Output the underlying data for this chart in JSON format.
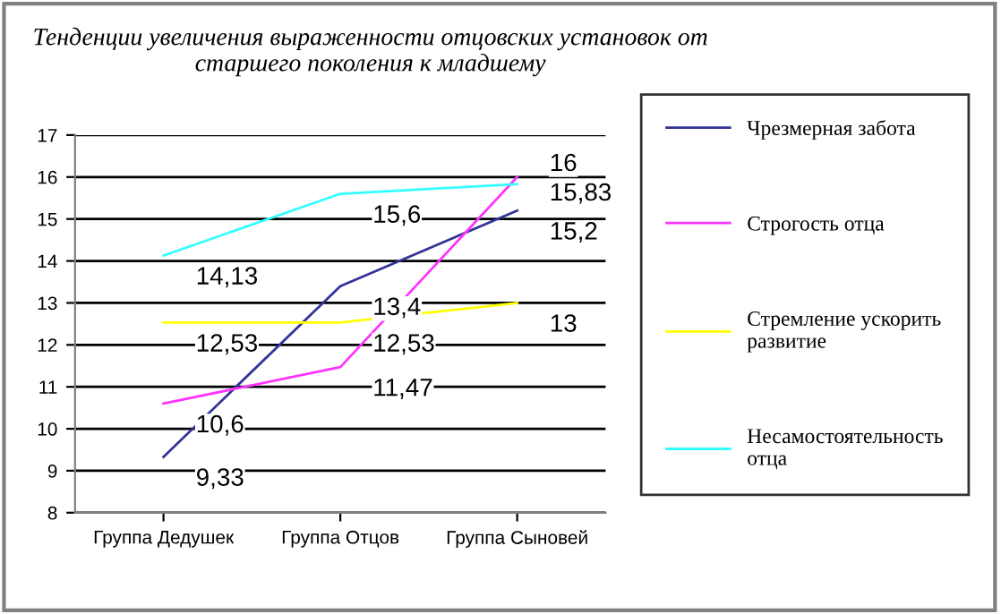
{
  "chart_data": {
    "type": "line",
    "title": "Тенденции увеличения выраженности отцовских установок от старшего поколения к младшему",
    "categories": [
      "Группа Дедушек",
      "Группа Отцов",
      "Группа Сыновей"
    ],
    "series": [
      {
        "name": "Чрезмерная забота",
        "color": "#333399",
        "values": [
          9.33,
          13.4,
          15.2
        ],
        "value_labels": [
          "9,33",
          "13,4",
          "15,2"
        ]
      },
      {
        "name": "Строгость отца",
        "color": "#ff33ff",
        "values": [
          10.6,
          11.47,
          16
        ],
        "value_labels": [
          "10,6",
          "11,47",
          "16"
        ]
      },
      {
        "name": "Стремление ускорить развитие",
        "color": "#ffff00",
        "values": [
          12.53,
          12.53,
          13
        ],
        "value_labels": [
          "12,53",
          "12,53",
          "13"
        ]
      },
      {
        "name": "Несамостоятельность отца",
        "color": "#33ffff",
        "values": [
          14.13,
          15.6,
          15.83
        ],
        "value_labels": [
          "14,13",
          "15,6",
          "15,83"
        ]
      }
    ],
    "ylim": [
      8,
      17
    ],
    "yticks": [
      8,
      9,
      10,
      11,
      12,
      13,
      14,
      15,
      16,
      17
    ],
    "grid": "y",
    "legend": "right",
    "marker": "none",
    "line_style": "solid"
  }
}
